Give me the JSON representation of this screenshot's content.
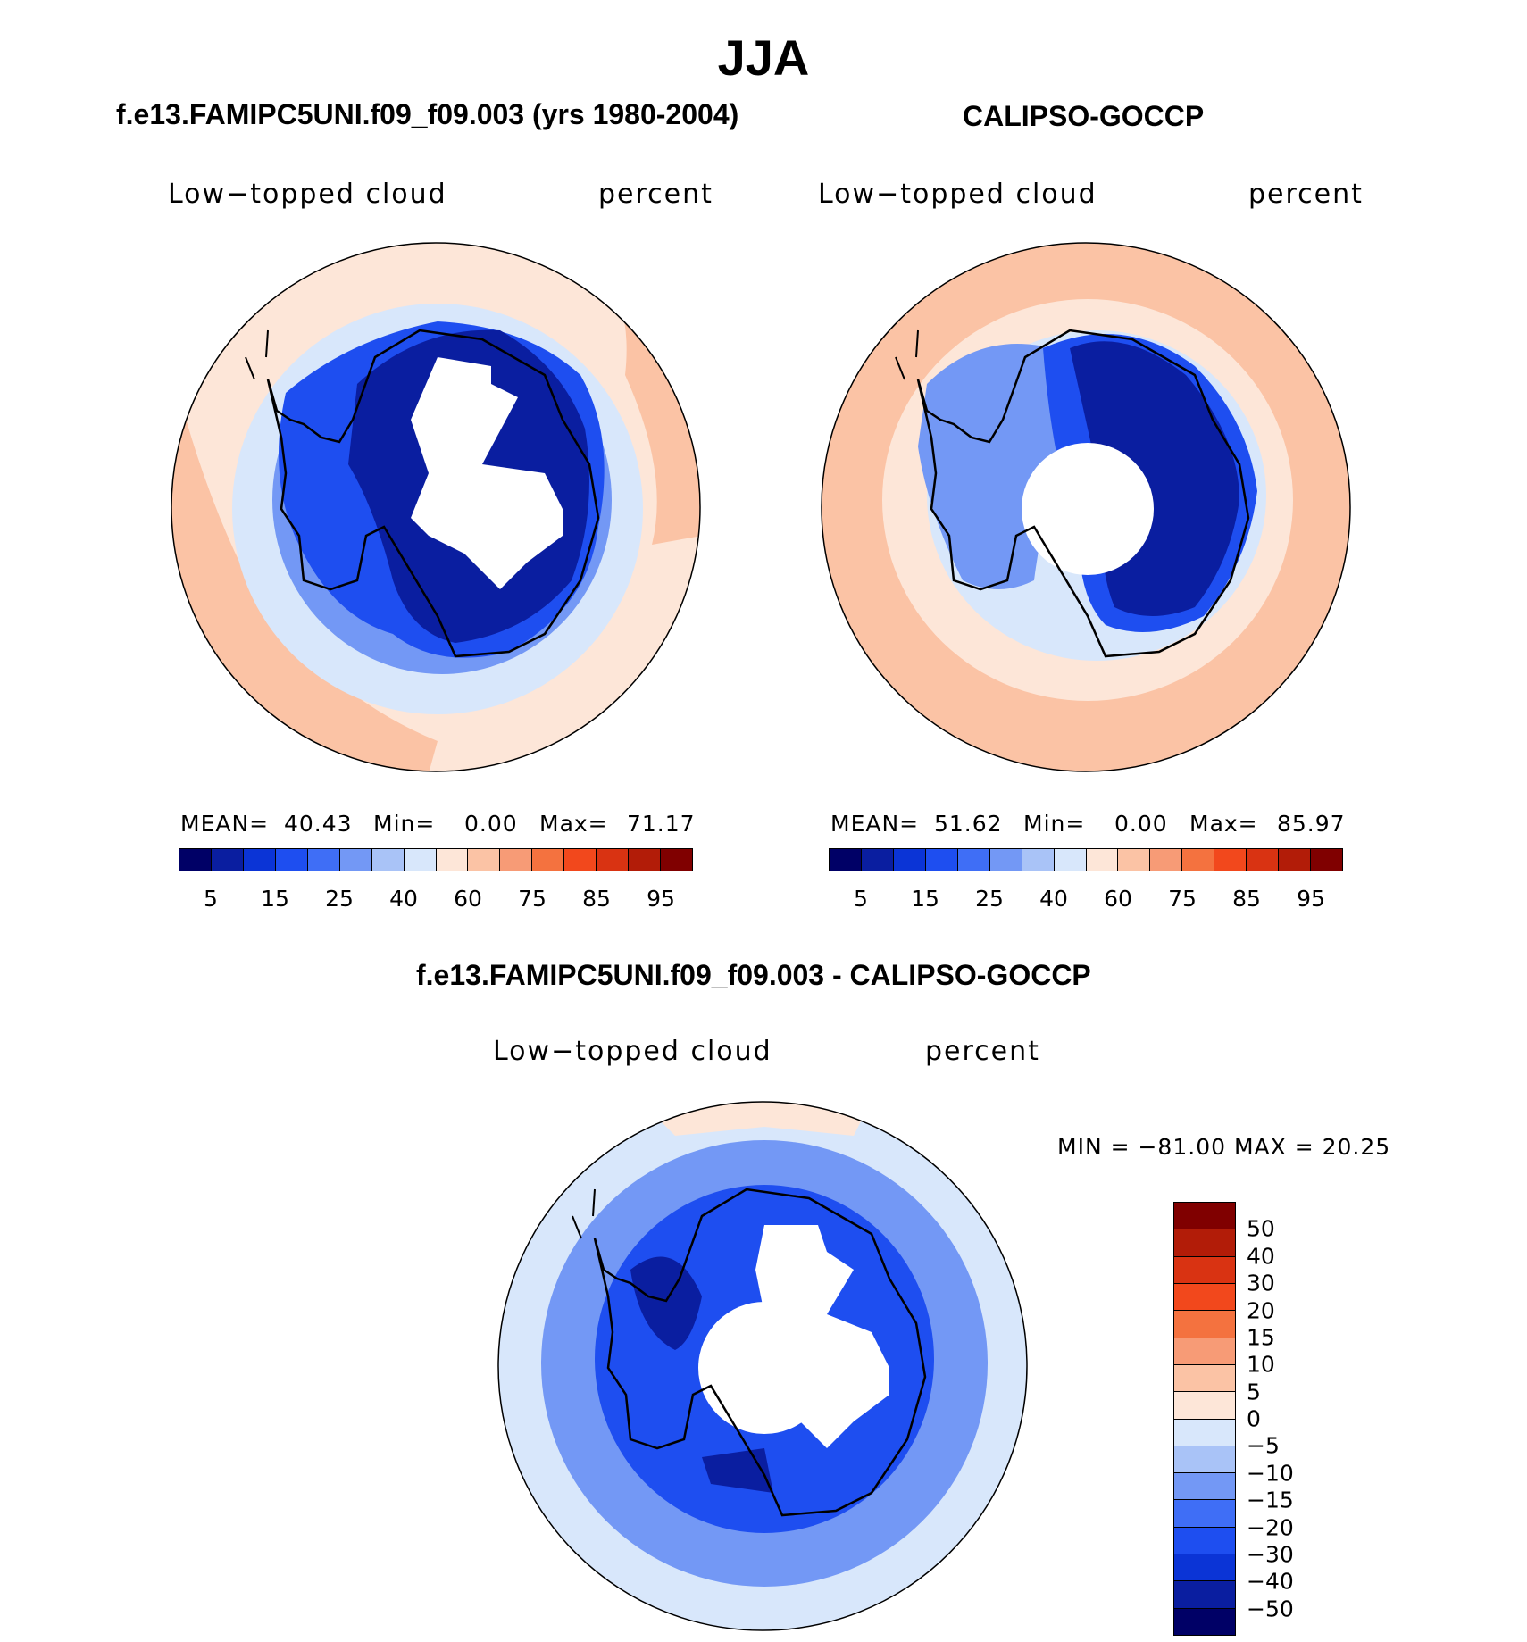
{
  "title": "JJA",
  "panels": {
    "model": {
      "title": "f.e13.FAMIPC5UNI.f09_f09.003 (yrs 1980-2004)",
      "variable": "Low−topped cloud",
      "units": "percent",
      "mean_label": "MEAN=",
      "mean": "40.43",
      "min_label": "Min=",
      "min": "0.00",
      "max_label": "Max=",
      "max": "71.17"
    },
    "obs": {
      "title": "CALIPSO-GOCCP",
      "variable": "Low−topped cloud",
      "units": "percent",
      "mean_label": "MEAN=",
      "mean": "51.62",
      "min_label": "Min=",
      "min": "0.00",
      "max_label": "Max=",
      "max": "85.97"
    },
    "diff": {
      "title": "f.e13.FAMIPC5UNI.f09_f09.003 - CALIPSO-GOCCP",
      "variable": "Low−topped cloud",
      "units": "percent",
      "range_text": "MIN = −81.00 MAX =   20.25"
    }
  },
  "colorbar_abs": {
    "colors": [
      "#000066",
      "#0a1ea0",
      "#0b34d6",
      "#1e4ef0",
      "#3f6ef6",
      "#7398f5",
      "#a9c3f7",
      "#d8e7fb",
      "#fde6d8",
      "#fbc3a5",
      "#f79b76",
      "#f4723f",
      "#f2481c",
      "#d93312",
      "#b21c08",
      "#800000"
    ],
    "tick_labels": [
      "5",
      "15",
      "25",
      "40",
      "60",
      "75",
      "85",
      "95"
    ]
  },
  "colorbar_diff": {
    "colors": [
      "#800000",
      "#b21c08",
      "#d93312",
      "#f2481c",
      "#f4723f",
      "#f79b76",
      "#fbc3a5",
      "#fde6d8",
      "#d8e7fb",
      "#a9c3f7",
      "#7398f5",
      "#3f6ef6",
      "#1e4ef0",
      "#0b34d6",
      "#0a1ea0",
      "#000066"
    ],
    "tick_labels": [
      "50",
      "40",
      "30",
      "20",
      "15",
      "10",
      "5",
      "0",
      "−5",
      "−10",
      "−15",
      "−20",
      "−30",
      "−40",
      "−50"
    ]
  },
  "map_colors": {
    "ocean_far": "#fbc3a5",
    "ocean_mid": "#fde6d8",
    "ring_light": "#d8e7fb",
    "ring_blue": "#7398f5",
    "ice_blue": "#1e4ef0",
    "ice_dark": "#0a1ea0",
    "missing": "#ffffff",
    "coast": "#000000"
  }
}
